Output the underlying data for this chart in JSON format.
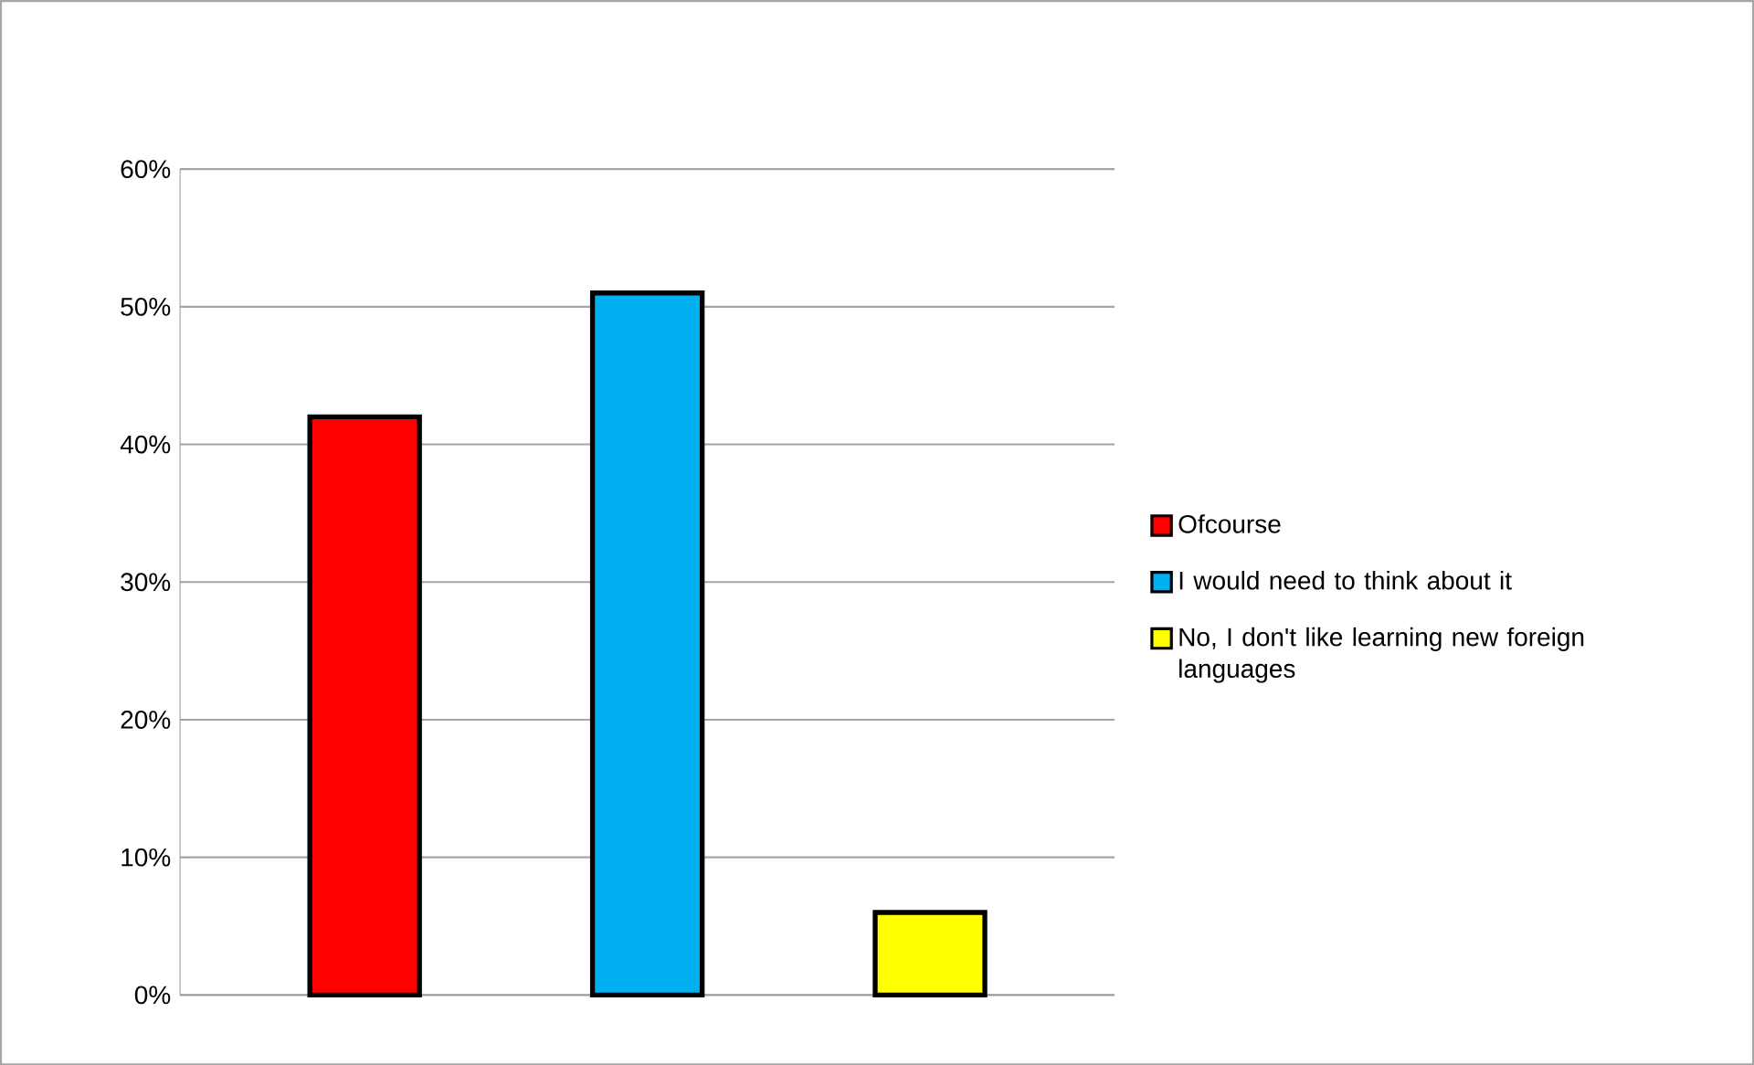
{
  "chart_data": {
    "type": "bar",
    "categories": [
      null
    ],
    "series": [
      {
        "name": "Ofcourse",
        "color": "#ff0000",
        "values": [
          42
        ]
      },
      {
        "name": "I would need to think about it",
        "color": "#00b0f0",
        "values": [
          51
        ]
      },
      {
        "name": "No, I don't like learning new foreign languages",
        "color": "#ffff00",
        "values": [
          6
        ]
      }
    ],
    "ylim": [
      0,
      60
    ],
    "yticks": [
      {
        "value": 0,
        "label": "0%"
      },
      {
        "value": 10,
        "label": "10%"
      },
      {
        "value": 20,
        "label": "20%"
      },
      {
        "value": 30,
        "label": "30%"
      },
      {
        "value": 40,
        "label": "40%"
      },
      {
        "value": 50,
        "label": "50%"
      },
      {
        "value": 60,
        "label": "60%"
      }
    ],
    "grid": "y",
    "legend": "right"
  }
}
